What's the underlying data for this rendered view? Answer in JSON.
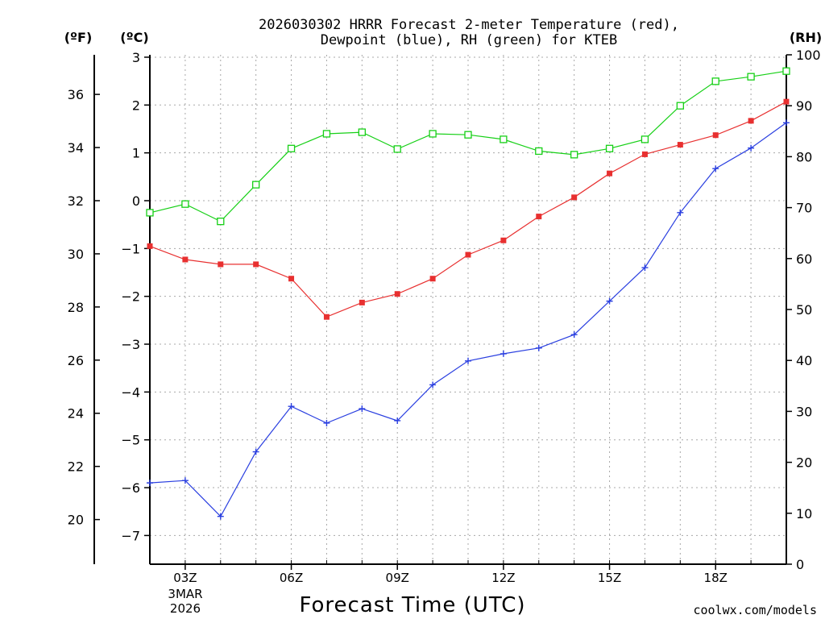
{
  "title_line1": "2026030302 HRRR Forecast 2-meter Temperature (red),",
  "title_line2": "Dewpoint (blue), RH (green) for KTEB",
  "unit_f": "(ºF)",
  "unit_c": "(ºC)",
  "unit_rh": "(RH)",
  "xlabel": "Forecast Time (UTC)",
  "credit": "coolwx.com/models",
  "date_label_line1": "3MAR",
  "date_label_line2": "2026",
  "colors": {
    "temperature": "#e83030",
    "dewpoint": "#2a3fe0",
    "rh": "#16d016",
    "credit": "#e02020",
    "grid": "#a8a8a8"
  },
  "chart_data": {
    "type": "line",
    "title": "2026030302 HRRR Forecast 2-meter Temperature (red), Dewpoint (blue), RH (green) for KTEB",
    "xlabel": "Forecast Time (UTC)",
    "x_hours": [
      2,
      3,
      4,
      5,
      6,
      7,
      8,
      9,
      10,
      11,
      12,
      13,
      14,
      15,
      16,
      17,
      18,
      19,
      20
    ],
    "xlim": [
      2,
      20
    ],
    "x_ticks": [
      {
        "hour": 3,
        "label": "03Z"
      },
      {
        "hour": 6,
        "label": "06Z"
      },
      {
        "hour": 9,
        "label": "09Z"
      },
      {
        "hour": 12,
        "label": "12Z"
      },
      {
        "hour": 15,
        "label": "15Z"
      },
      {
        "hour": 18,
        "label": "18Z"
      }
    ],
    "y_celsius": {
      "label": "(ºC)",
      "lim": [
        -7.6,
        3.05
      ],
      "ticks": [
        3,
        2,
        1,
        0,
        -1,
        -2,
        -3,
        -4,
        -5,
        -6,
        -7
      ],
      "tick_labels": [
        "3",
        "2",
        "1",
        "0",
        "−1",
        "−2",
        "−3",
        "−4",
        "−5",
        "−6",
        "−7"
      ]
    },
    "y_fahrenheit": {
      "label": "(ºF)",
      "ticks": [
        36,
        34,
        32,
        30,
        28,
        26,
        24,
        22,
        20
      ],
      "tick_labels": [
        "36",
        "34",
        "32",
        "30",
        "28",
        "26",
        "24",
        "22",
        "20"
      ]
    },
    "y_rh": {
      "label": "(RH)",
      "lim": [
        0,
        100
      ],
      "ticks": [
        100,
        90,
        80,
        70,
        60,
        50,
        40,
        30,
        20,
        10,
        0
      ],
      "tick_labels": [
        "100",
        "90",
        "80",
        "70",
        "60",
        "50",
        "40",
        "30",
        "20",
        "10",
        "0"
      ]
    },
    "grid": true,
    "series": [
      {
        "name": "Temperature",
        "axis": "celsius",
        "marker": "filled-square",
        "values": [
          -0.95,
          -1.23,
          -1.33,
          -1.33,
          -1.63,
          -2.43,
          -2.13,
          -1.95,
          -1.63,
          -1.13,
          -0.83,
          -0.33,
          0.07,
          0.57,
          0.97,
          1.17,
          1.37,
          1.67,
          2.07
        ]
      },
      {
        "name": "Dewpoint",
        "axis": "celsius",
        "marker": "plus",
        "values": [
          -5.9,
          -5.85,
          -6.6,
          -5.25,
          -4.3,
          -4.65,
          -4.35,
          -4.6,
          -3.85,
          -3.35,
          -3.2,
          -3.08,
          -2.8,
          -2.1,
          -1.4,
          -0.25,
          0.67,
          1.1,
          1.63
        ]
      },
      {
        "name": "RH",
        "axis": "rh",
        "marker": "open-square",
        "values": [
          69,
          70.7,
          67.3,
          74.5,
          81.6,
          84.5,
          84.8,
          81.5,
          84.5,
          84.3,
          83.4,
          81.1,
          80.4,
          81.6,
          83.4,
          90.0,
          94.8,
          95.7,
          96.8
        ]
      }
    ]
  }
}
